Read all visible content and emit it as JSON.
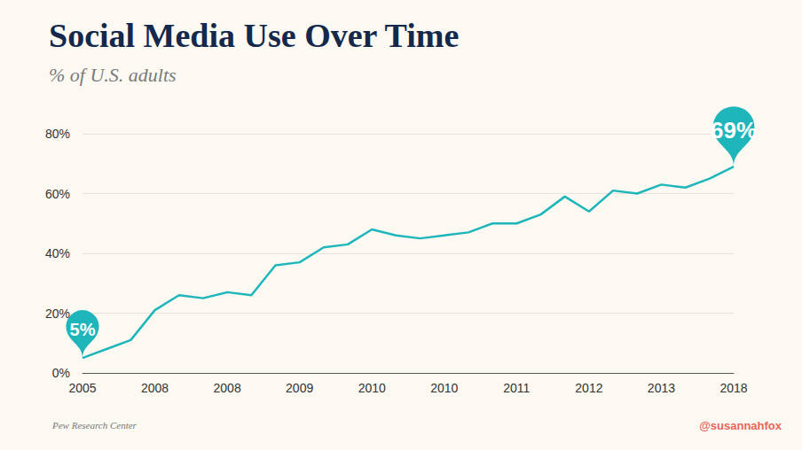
{
  "chart_data": {
    "type": "line",
    "title": "Social Media Use Over Time",
    "subtitle": "% of U.S. adults",
    "source": "Pew Research Center",
    "credit": "@susannahfox",
    "categories": [
      "2005",
      null,
      null,
      "2008",
      null,
      null,
      "2008",
      null,
      null,
      "2009",
      null,
      null,
      "2010",
      null,
      null,
      "2010",
      null,
      null,
      "2011",
      null,
      null,
      "2012",
      null,
      null,
      "2013",
      null,
      null,
      "2018"
    ],
    "values": [
      5,
      8,
      11,
      21,
      26,
      25,
      27,
      26,
      36,
      37,
      42,
      43,
      48,
      46,
      45,
      46,
      47,
      50,
      50,
      53,
      59,
      54,
      61,
      60,
      63,
      62,
      65,
      69
    ],
    "color": "#1fb6bb",
    "ylim": [
      0,
      80
    ],
    "yticks": [
      {
        "value": 0,
        "label": "0%"
      },
      {
        "value": 20,
        "label": "20%"
      },
      {
        "value": 40,
        "label": "40%"
      },
      {
        "value": 60,
        "label": "60%"
      },
      {
        "value": 80,
        "label": "80%"
      }
    ],
    "grid": true,
    "annotations": [
      {
        "category": "2005",
        "value": 5,
        "label": "5%"
      },
      {
        "category": "2018",
        "value": 69,
        "label": "69%"
      }
    ]
  }
}
